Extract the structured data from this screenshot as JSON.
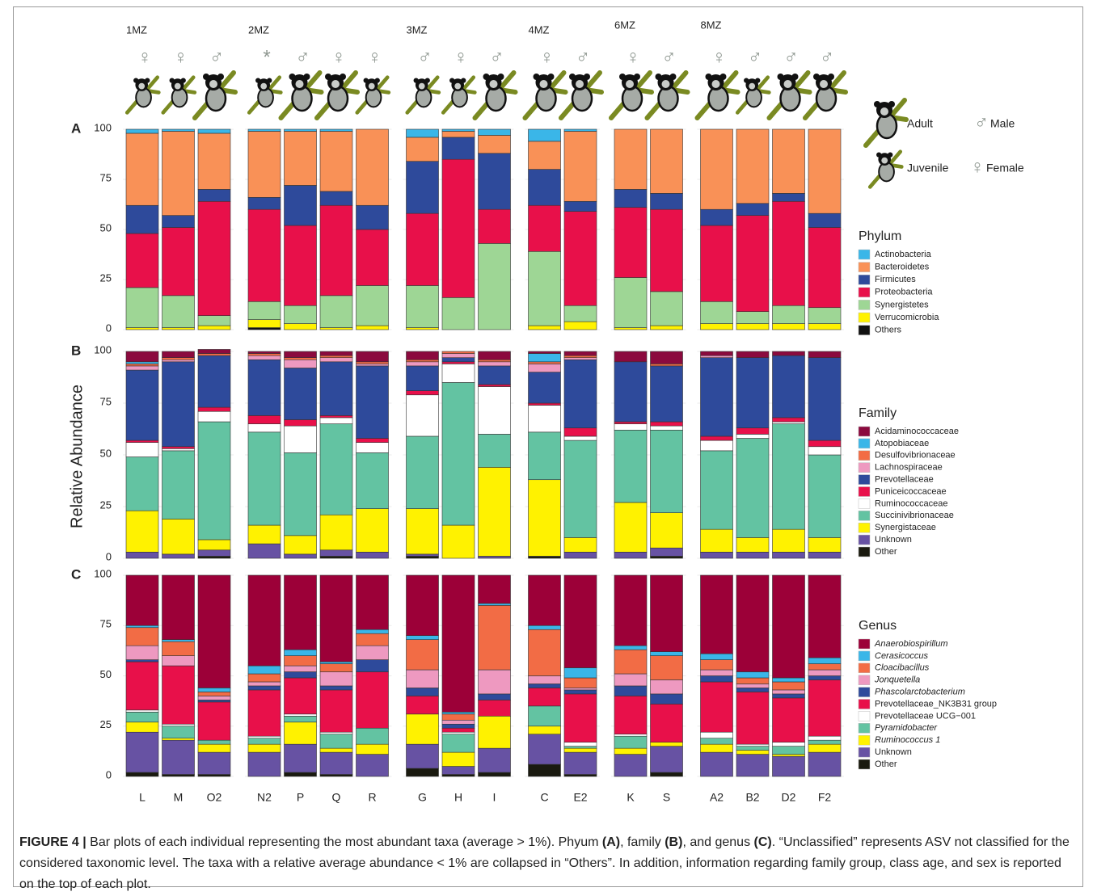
{
  "groups": [
    {
      "label": "1MZ",
      "categories": [
        "L",
        "M",
        "O2"
      ],
      "sexes": [
        "♀",
        "♀",
        "♂"
      ],
      "ages": [
        "Juvenile",
        "Juvenile",
        "Adult"
      ]
    },
    {
      "label": "2MZ",
      "categories": [
        "N2",
        "P",
        "Q",
        "R"
      ],
      "sexes": [
        "*",
        "♂",
        "♀",
        "♀"
      ],
      "ages": [
        "Juvenile",
        "Adult",
        "Adult",
        "Juvenile"
      ]
    },
    {
      "label": "3MZ",
      "categories": [
        "G",
        "H",
        "I"
      ],
      "sexes": [
        "♂",
        "♀",
        "♂"
      ],
      "ages": [
        "Juvenile",
        "Juvenile",
        "Adult"
      ]
    },
    {
      "label": "4MZ",
      "categories": [
        "C",
        "E2"
      ],
      "sexes": [
        "♀",
        "♂"
      ],
      "ages": [
        "Adult",
        "Adult"
      ]
    },
    {
      "label": "6MZ",
      "categories": [
        "K",
        "S"
      ],
      "sexes": [
        "♀",
        "♂"
      ],
      "ages": [
        "Adult",
        "Adult"
      ]
    },
    {
      "label": "8MZ",
      "categories": [
        "A2",
        "B2",
        "D2",
        "F2"
      ],
      "sexes": [
        "♀",
        "♂",
        "♂",
        "♂"
      ],
      "ages": [
        "Adult",
        "Juvenile",
        "Adult",
        "Adult"
      ]
    }
  ],
  "age_legend": [
    "Adult",
    "Juvenile"
  ],
  "sex_legend": [
    {
      "symbol": "♂",
      "label": "Male"
    },
    {
      "symbol": "♀",
      "label": "Female"
    }
  ],
  "chart_data": [
    {
      "type": "bar",
      "stacked": true,
      "panel": "A",
      "legend_title": "Phylum",
      "ylim": [
        0,
        100
      ],
      "yticks": [
        0,
        25,
        50,
        75,
        100
      ],
      "grid": true,
      "series": [
        {
          "name": "Actinobacteria",
          "color": "#3ab6e8",
          "values": [
            2,
            1,
            2,
            1,
            1,
            1,
            0,
            4,
            1,
            3,
            6,
            1,
            0,
            0,
            0,
            0,
            0,
            0
          ]
        },
        {
          "name": "Bacteroidetes",
          "color": "#f99157",
          "values": [
            36,
            42,
            28,
            33,
            27,
            30,
            38,
            12,
            3,
            9,
            14,
            35,
            30,
            32,
            40,
            37,
            32,
            42
          ]
        },
        {
          "name": "Firmicutes",
          "color": "#2e4a9b",
          "values": [
            14,
            6,
            6,
            6,
            20,
            7,
            12,
            26,
            11,
            28,
            18,
            5,
            9,
            8,
            8,
            6,
            4,
            7
          ]
        },
        {
          "name": "Proteobacteria",
          "color": "#e8104a",
          "values": [
            27,
            34,
            57,
            46,
            40,
            45,
            28,
            36,
            69,
            17,
            23,
            47,
            35,
            41,
            38,
            48,
            52,
            40
          ]
        },
        {
          "name": "Synergistetes",
          "color": "#9ed695",
          "values": [
            20,
            16,
            5,
            9,
            9,
            16,
            20,
            21,
            16,
            43,
            37,
            8,
            25,
            17,
            11,
            6,
            9,
            8
          ]
        },
        {
          "name": "Verrucomicrobia",
          "color": "#fff200",
          "values": [
            1,
            1,
            2,
            4,
            3,
            1,
            2,
            1,
            0,
            0,
            2,
            4,
            1,
            2,
            3,
            3,
            3,
            3
          ]
        },
        {
          "name": "Others",
          "color": "#111111",
          "values": [
            0,
            0,
            0,
            1,
            0,
            0,
            0,
            0,
            0,
            0,
            0,
            0,
            0,
            0,
            0,
            0,
            0,
            0
          ]
        }
      ]
    },
    {
      "type": "bar",
      "stacked": true,
      "panel": "B",
      "legend_title": "Family",
      "ylabel": "Relative Abundance",
      "ylim": [
        0,
        100
      ],
      "yticks": [
        0,
        25,
        50,
        75,
        100
      ],
      "grid": true,
      "series": [
        {
          "name": "Acidaminococcaceae",
          "color": "#8b0a3e",
          "values": [
            5,
            3,
            2,
            1,
            3,
            2,
            5,
            4,
            0,
            4,
            1,
            2,
            5,
            6,
            2,
            3,
            2,
            3
          ]
        },
        {
          "name": "Atopobiaceae",
          "color": "#3ab6e8",
          "values": [
            1,
            0,
            0,
            0,
            0,
            0,
            0,
            0,
            0,
            0,
            4,
            0,
            0,
            0,
            0,
            0,
            0,
            0
          ]
        },
        {
          "name": "Desulfovibrionaceae",
          "color": "#f26c45",
          "values": [
            1,
            1,
            1,
            1,
            1,
            1,
            1,
            1,
            1,
            1,
            1,
            1,
            0,
            1,
            0,
            0,
            0,
            0
          ]
        },
        {
          "name": "Lachnospiraceae",
          "color": "#ee99c0",
          "values": [
            2,
            1,
            0,
            2,
            4,
            2,
            1,
            2,
            2,
            2,
            4,
            1,
            0,
            0,
            1,
            0,
            0,
            0
          ]
        },
        {
          "name": "Prevotellaceae",
          "color": "#2e4a9b",
          "values": [
            34,
            41,
            25,
            27,
            25,
            26,
            35,
            12,
            2,
            9,
            15,
            33,
            29,
            27,
            38,
            34,
            30,
            40
          ]
        },
        {
          "name": "Puniceicoccaceae",
          "color": "#e8104a",
          "values": [
            1,
            1,
            2,
            4,
            3,
            1,
            2,
            2,
            1,
            1,
            1,
            4,
            1,
            2,
            2,
            3,
            2,
            3
          ]
        },
        {
          "name": "Ruminococcaceae",
          "color": "#ffffff",
          "values": [
            7,
            1,
            5,
            4,
            13,
            3,
            5,
            20,
            9,
            23,
            13,
            2,
            3,
            2,
            5,
            2,
            1,
            4
          ]
        },
        {
          "name": "Succinivibrionaceae",
          "color": "#63c3a2",
          "values": [
            26,
            33,
            57,
            45,
            40,
            44,
            27,
            35,
            69,
            16,
            23,
            47,
            35,
            40,
            38,
            48,
            51,
            40
          ]
        },
        {
          "name": "Synergistaceae",
          "color": "#fff200",
          "values": [
            20,
            17,
            5,
            9,
            9,
            17,
            21,
            22,
            16,
            43,
            37,
            7,
            24,
            17,
            11,
            7,
            11,
            7
          ]
        },
        {
          "name": "Unknown",
          "color": "#6752a3",
          "values": [
            3,
            2,
            3,
            7,
            2,
            3,
            3,
            1,
            0,
            1,
            0,
            3,
            3,
            4,
            3,
            3,
            3,
            3
          ]
        },
        {
          "name": "Other",
          "color": "#1a1a0f",
          "values": [
            0,
            0,
            1,
            0,
            0,
            1,
            0,
            1,
            0,
            0,
            1,
            0,
            0,
            1,
            0,
            0,
            0,
            0
          ]
        }
      ]
    },
    {
      "type": "bar",
      "stacked": true,
      "panel": "C",
      "legend_title": "Genus",
      "ylim": [
        0,
        100
      ],
      "yticks": [
        0,
        25,
        50,
        75,
        100
      ],
      "grid": true,
      "series": [
        {
          "name": "Anaerobiospirillum",
          "italic": true,
          "color": "#9c0038",
          "values": [
            25,
            32,
            56,
            45,
            37,
            43,
            27,
            30,
            68,
            14,
            25,
            46,
            35,
            38,
            39,
            48,
            51,
            41
          ]
        },
        {
          "name": "Cerasicoccus",
          "italic": true,
          "color": "#3ab6e8",
          "values": [
            1,
            1,
            2,
            4,
            3,
            1,
            2,
            2,
            1,
            1,
            2,
            5,
            2,
            2,
            3,
            3,
            2,
            3
          ]
        },
        {
          "name": "Cloacibacillus",
          "italic": true,
          "color": "#f26c45",
          "values": [
            9,
            7,
            2,
            4,
            5,
            4,
            6,
            15,
            3,
            32,
            23,
            5,
            12,
            12,
            5,
            3,
            4,
            3
          ]
        },
        {
          "name": "Jonquetella",
          "italic": true,
          "color": "#ee99c0",
          "values": [
            7,
            5,
            2,
            2,
            3,
            7,
            7,
            9,
            2,
            12,
            4,
            1,
            6,
            7,
            3,
            2,
            2,
            3
          ]
        },
        {
          "name": "Phascolarctobacterium",
          "italic": true,
          "color": "#2e4a9b",
          "values": [
            1,
            0,
            1,
            2,
            3,
            2,
            6,
            4,
            2,
            3,
            2,
            2,
            5,
            5,
            3,
            2,
            2,
            2
          ]
        },
        {
          "name": "Prevotellaceae_NK3B31 group",
          "color": "#e8104a",
          "values": [
            24,
            29,
            19,
            23,
            18,
            21,
            28,
            9,
            2,
            8,
            9,
            24,
            19,
            19,
            25,
            26,
            22,
            28
          ]
        },
        {
          "name": "Prevotellaceae UCG−001",
          "color": "#ffffff",
          "values": [
            1,
            1,
            0,
            1,
            1,
            1,
            0,
            0,
            1,
            0,
            0,
            2,
            1,
            0,
            3,
            1,
            2,
            2
          ]
        },
        {
          "name": "Pyramidobacter",
          "italic": true,
          "color": "#63c3a2",
          "values": [
            5,
            6,
            2,
            3,
            3,
            7,
            8,
            0,
            9,
            0,
            10,
            1,
            6,
            0,
            3,
            2,
            4,
            2
          ]
        },
        {
          "name": "Ruminococcus 1",
          "italic": true,
          "color": "#fff200",
          "values": [
            5,
            1,
            4,
            4,
            11,
            2,
            5,
            15,
            7,
            16,
            4,
            2,
            3,
            2,
            4,
            2,
            1,
            4
          ]
        },
        {
          "name": "Unknown",
          "color": "#6752a3",
          "values": [
            20,
            17,
            11,
            12,
            14,
            11,
            11,
            12,
            4,
            12,
            15,
            11,
            11,
            13,
            12,
            11,
            10,
            12
          ]
        },
        {
          "name": "Other",
          "color": "#1a1a0f",
          "values": [
            2,
            1,
            1,
            0,
            2,
            1,
            0,
            4,
            1,
            2,
            6,
            1,
            0,
            2,
            0,
            0,
            0,
            0
          ]
        }
      ]
    }
  ],
  "caption": [
    "FIGURE 4 |",
    " Bar plots of each individual representing the most abundant taxa (average > 1%). Phyum ",
    "(A)",
    ", family ",
    "(B)",
    ", and genus ",
    "(C)",
    ". “Unclassified” represents ASV not classified for the considered taxonomic level. The taxa with a relative average abundance < 1% are collapsed in “Others”. In addition, information regarding family group, class age, and sex is reported on the top of each plot."
  ]
}
